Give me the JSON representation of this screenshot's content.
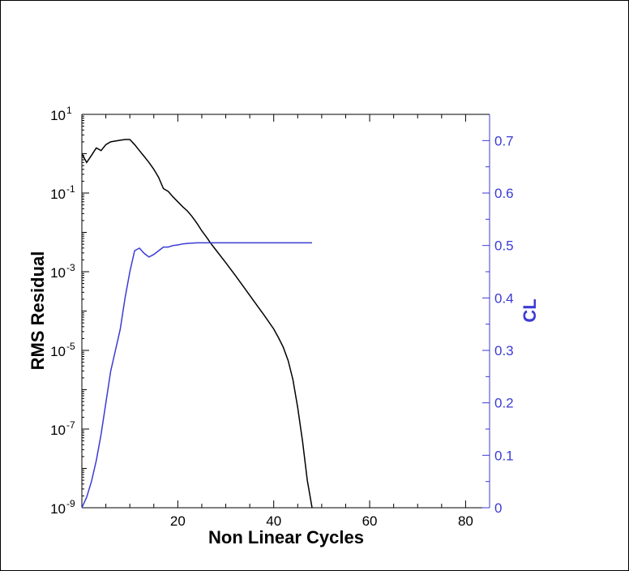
{
  "chart_data": {
    "type": "line",
    "xlabel": "Non Linear Cycles",
    "ylabel": "RMS Residual",
    "y2label": "CL",
    "xlim": [
      0,
      85
    ],
    "ylim": [
      1e-09,
      10
    ],
    "yscale": "log",
    "y2lim": [
      0,
      0.75
    ],
    "x_ticks": [
      20,
      40,
      60,
      80
    ],
    "y_ticks": [
      {
        "mantissa": "10",
        "exponent": "1"
      },
      {
        "mantissa": "10",
        "exponent": "-1"
      },
      {
        "mantissa": "10",
        "exponent": "-3"
      },
      {
        "mantissa": "10",
        "exponent": "-5"
      },
      {
        "mantissa": "10",
        "exponent": "-7"
      },
      {
        "mantissa": "10",
        "exponent": "-9"
      }
    ],
    "y2_ticks": [
      "0",
      "0.1",
      "0.2",
      "0.3",
      "0.4",
      "0.5",
      "0.6",
      "0.7"
    ],
    "grid": false,
    "colors": {
      "residual": "#000000",
      "cl": "#3b3bd6",
      "axis_right": "#3b3bd6"
    },
    "series": [
      {
        "axis": "left",
        "x": [
          0,
          1,
          2,
          3,
          4,
          5,
          6,
          7,
          8,
          9,
          10,
          11,
          12,
          13,
          14,
          15,
          16,
          17,
          18,
          19,
          20,
          21,
          22,
          23,
          24,
          25,
          26,
          27,
          28,
          30,
          32,
          34,
          36,
          38,
          40,
          41,
          42,
          43,
          44,
          45,
          46,
          47,
          48
        ],
        "y": [
          1.0,
          0.6,
          0.9,
          1.4,
          1.2,
          1.7,
          2.0,
          2.1,
          2.2,
          2.3,
          2.3,
          1.7,
          1.2,
          0.85,
          0.6,
          0.4,
          0.25,
          0.13,
          0.11,
          0.08,
          0.06,
          0.045,
          0.035,
          0.025,
          0.017,
          0.011,
          0.0075,
          0.005,
          0.0035,
          0.0017,
          0.0008,
          0.00037,
          0.00017,
          7.8e-05,
          3.5e-05,
          2.1e-05,
          1.2e-05,
          5.5e-06,
          1.8e-06,
          3.5e-07,
          5e-08,
          5e-09,
          1e-09
        ]
      },
      {
        "axis": "right",
        "x": [
          0,
          1,
          2,
          3,
          4,
          5,
          6,
          7,
          8,
          9,
          10,
          11,
          12,
          13,
          14,
          15,
          16,
          17,
          18,
          19,
          20,
          21,
          22,
          24,
          26,
          28,
          30,
          35,
          40,
          45,
          48
        ],
        "y": [
          0.0,
          0.02,
          0.05,
          0.09,
          0.14,
          0.2,
          0.26,
          0.3,
          0.34,
          0.4,
          0.45,
          0.49,
          0.495,
          0.485,
          0.478,
          0.483,
          0.49,
          0.497,
          0.497,
          0.5,
          0.501,
          0.503,
          0.504,
          0.505,
          0.505,
          0.505,
          0.505,
          0.505,
          0.505,
          0.505,
          0.505
        ]
      }
    ]
  }
}
